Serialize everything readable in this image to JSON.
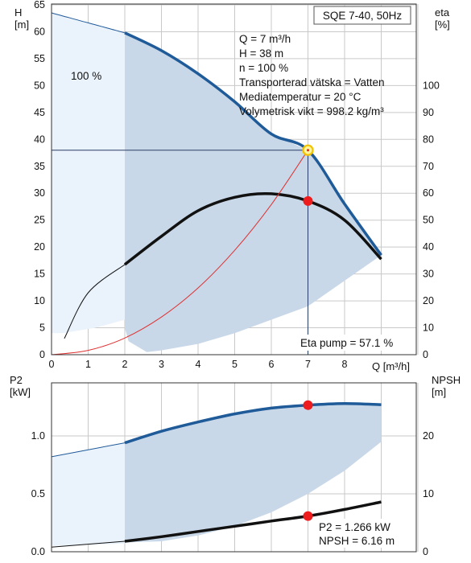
{
  "title": "SQE 7-40, 50Hz",
  "info_lines": [
    "Q = 7 m³/h",
    "H = 38 m",
    "n = 100 %",
    "Transporterad vätska = Vatten",
    "Mediatemperatur = 20 °C",
    "Volymetrisk vikt = 998.2 kg/m³"
  ],
  "speed_label": "100 %",
  "eta_pump_label": "Eta pump = 57.1 %",
  "p2_npsh_labels": [
    "P2 = 1.266 kW",
    "NPSH = 6.16 m"
  ],
  "colors": {
    "curve_blue": "#1f5a99",
    "area_fill": "#c9d8e8",
    "area_fill_light": "#eaf2fb",
    "grid": "#c9c9c9",
    "system_curve": "#e03030",
    "marker": "#ee1c1c",
    "duty_point_ring": "#f2c200"
  },
  "chart_data": [
    {
      "type": "line",
      "title": "SQE 7-40, 50Hz",
      "xlabel": "Q [m³/h]",
      "ylabel_left": "H\n[m]",
      "ylabel_right": "eta\n[%]",
      "xlim": [
        0,
        10
      ],
      "ylim_left": [
        0,
        65
      ],
      "ylim_right_ticks": [
        0,
        10,
        20,
        30,
        40,
        50,
        60,
        70,
        80,
        90,
        100
      ],
      "x_ticks": [
        0,
        1,
        2,
        3,
        4,
        5,
        6,
        7,
        8
      ],
      "y_left_ticks": [
        0,
        5,
        10,
        15,
        20,
        25,
        30,
        35,
        40,
        45,
        50,
        55,
        60,
        65
      ],
      "grid": true,
      "series": [
        {
          "name": "H",
          "axis": "left",
          "x": [
            0,
            2,
            3,
            4,
            5,
            6,
            7,
            8,
            9
          ],
          "y": [
            63.5,
            59.8,
            56.5,
            52.2,
            47.0,
            41.0,
            38.0,
            28.0,
            18.5
          ]
        },
        {
          "name": "eta",
          "axis": "right",
          "x": [
            0.35,
            1,
            2,
            3,
            4,
            5,
            6,
            7,
            8,
            9
          ],
          "y": [
            6,
            23,
            33.5,
            44,
            53.5,
            58.5,
            59.8,
            57.1,
            50,
            35.5
          ]
        },
        {
          "name": "system",
          "axis": "left",
          "x": [
            0,
            1,
            2,
            3,
            4,
            5,
            6,
            7
          ],
          "y": [
            0,
            0.8,
            3.1,
            7.0,
            12.4,
            19.4,
            27.9,
            38.0
          ]
        }
      ],
      "duty_point": {
        "x": 7,
        "H": 38,
        "eta": 57.1
      }
    },
    {
      "type": "line",
      "ylabel_left": "P2\n[kW]",
      "ylabel_right": "NPSH\n[m]",
      "xlim": [
        0,
        10
      ],
      "ylim_left": [
        0,
        1.4
      ],
      "y_left_ticks": [
        0.0,
        0.5,
        1.0
      ],
      "y_right_ticks": [
        0,
        10,
        20
      ],
      "grid": true,
      "series": [
        {
          "name": "P2",
          "axis": "left",
          "x": [
            0,
            2,
            3,
            4,
            5,
            6,
            7,
            8,
            9
          ],
          "y": [
            0.82,
            0.94,
            1.04,
            1.12,
            1.19,
            1.24,
            1.266,
            1.28,
            1.27
          ]
        },
        {
          "name": "NPSH",
          "axis": "right",
          "x": [
            0,
            2,
            3,
            4,
            5,
            6,
            7,
            8,
            9
          ],
          "y": [
            0.8,
            1.8,
            2.6,
            3.5,
            4.4,
            5.3,
            6.16,
            7.3,
            8.6
          ]
        }
      ],
      "duty_point": {
        "x": 7,
        "P2": 1.266,
        "NPSH": 6.16
      }
    }
  ]
}
